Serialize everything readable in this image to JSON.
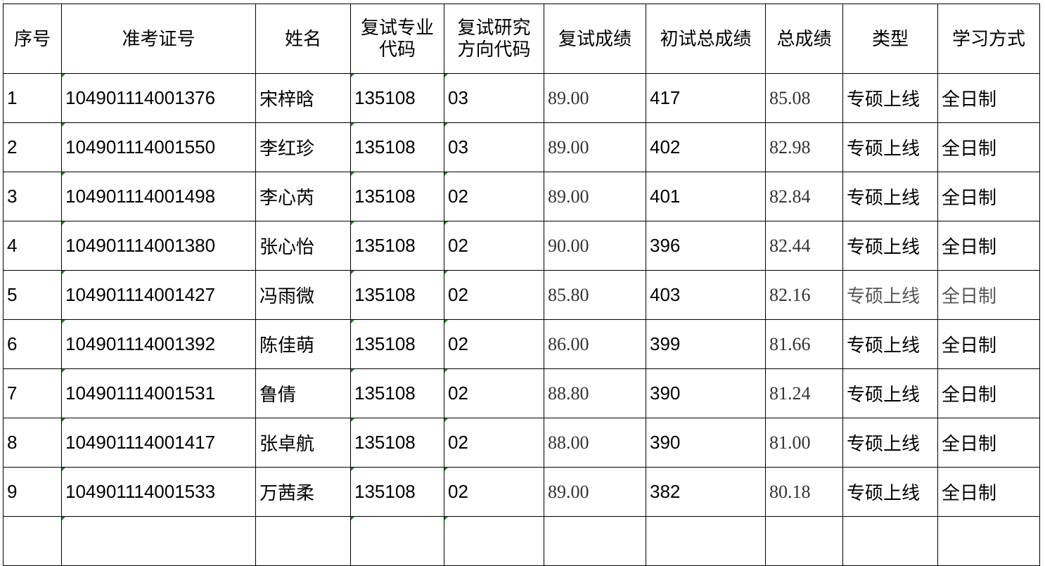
{
  "headers": [
    "序号",
    "准考证号",
    "姓名",
    "复试专业代码",
    "复试研究方向代码",
    "复试成绩",
    "初试总成绩",
    "总成绩",
    "类型",
    "学习方式"
  ],
  "header_lines": {
    "major_code": [
      "复试专业",
      "代码"
    ],
    "direction_code": [
      "复试研究",
      "方向代码"
    ]
  },
  "rows": [
    {
      "no": "1",
      "id": "104901114001376",
      "name": "宋梓晗",
      "major": "135108",
      "dir": "03",
      "retest": "89.00",
      "initial": "417",
      "total": "85.08",
      "type": "专硕上线",
      "mode": "全日制"
    },
    {
      "no": "2",
      "id": "104901114001550",
      "name": "李红珍",
      "major": "135108",
      "dir": "03",
      "retest": "89.00",
      "initial": "402",
      "total": "82.98",
      "type": "专硕上线",
      "mode": "全日制"
    },
    {
      "no": "3",
      "id": "104901114001498",
      "name": "李心芮",
      "major": "135108",
      "dir": "02",
      "retest": "89.00",
      "initial": "401",
      "total": "82.84",
      "type": "专硕上线",
      "mode": "全日制"
    },
    {
      "no": "4",
      "id": "104901114001380",
      "name": "张心怡",
      "major": "135108",
      "dir": "02",
      "retest": "90.00",
      "initial": "396",
      "total": "82.44",
      "type": "专硕上线",
      "mode": "全日制"
    },
    {
      "no": "5",
      "id": "104901114001427",
      "name": "冯雨微",
      "major": "135108",
      "dir": "02",
      "retest": "85.80",
      "initial": "403",
      "total": "82.16",
      "type": "专硕上线",
      "mode": "全日制"
    },
    {
      "no": "6",
      "id": "104901114001392",
      "name": "陈佳萌",
      "major": "135108",
      "dir": "02",
      "retest": "86.00",
      "initial": "399",
      "total": "81.66",
      "type": "专硕上线",
      "mode": "全日制"
    },
    {
      "no": "7",
      "id": "104901114001531",
      "name": "鲁倩",
      "major": "135108",
      "dir": "02",
      "retest": "88.80",
      "initial": "390",
      "total": "81.24",
      "type": "专硕上线",
      "mode": "全日制"
    },
    {
      "no": "8",
      "id": "104901114001417",
      "name": "张卓航",
      "major": "135108",
      "dir": "02",
      "retest": "88.00",
      "initial": "390",
      "total": "81.00",
      "type": "专硕上线",
      "mode": "全日制"
    },
    {
      "no": "9",
      "id": "104901114001533",
      "name": "万茜柔",
      "major": "135108",
      "dir": "02",
      "retest": "89.00",
      "initial": "382",
      "total": "80.18",
      "type": "专硕上线",
      "mode": "全日制"
    }
  ],
  "colors": {
    "border": "#000000",
    "comment_marker": "#1a8a1a",
    "score_text": "#333333"
  }
}
